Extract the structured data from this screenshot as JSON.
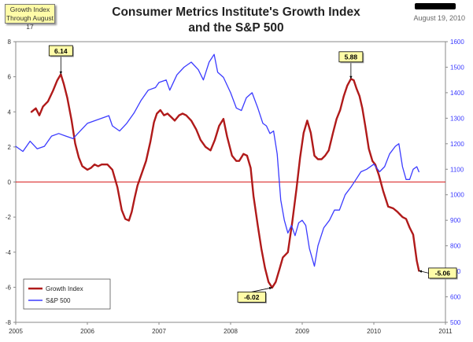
{
  "header": {
    "tag_line1": "Growth Index",
    "tag_line2": "Through August 17",
    "title_line1": "Consumer Metrics Institute's Growth Index",
    "title_line2": "and the S&P 500",
    "date": "August 19, 2010"
  },
  "chart_data": {
    "type": "line",
    "left_axis": {
      "min": -8,
      "max": 8,
      "ticks": [
        -8,
        -6,
        -4,
        -2,
        0,
        2,
        4,
        6,
        8
      ]
    },
    "right_axis": {
      "min": 500,
      "max": 1600,
      "ticks": [
        500,
        600,
        700,
        800,
        900,
        1000,
        1100,
        1200,
        1300,
        1400,
        1500,
        1600
      ]
    },
    "x_axis": {
      "min": 2005,
      "max": 2011,
      "ticks": [
        "2005",
        "2006",
        "2007",
        "2008",
        "2009",
        "2010",
        "2011"
      ]
    },
    "zero_line_color": "#d81e1e",
    "legend": {
      "position": "bottom-left"
    },
    "series": [
      {
        "name": "Growth Index",
        "color": "#b01a1a",
        "axis": "left",
        "x": [
          2005.22,
          2005.28,
          2005.33,
          2005.38,
          2005.45,
          2005.52,
          2005.58,
          2005.63,
          2005.67,
          2005.72,
          2005.78,
          2005.83,
          2005.88,
          2005.93,
          2006.0,
          2006.05,
          2006.1,
          2006.15,
          2006.2,
          2006.28,
          2006.35,
          2006.42,
          2006.48,
          2006.53,
          2006.58,
          2006.62,
          2006.66,
          2006.7,
          2006.76,
          2006.82,
          2006.88,
          2006.93,
          2006.97,
          2007.02,
          2007.07,
          2007.12,
          2007.17,
          2007.22,
          2007.28,
          2007.33,
          2007.38,
          2007.45,
          2007.52,
          2007.58,
          2007.65,
          2007.72,
          2007.78,
          2007.84,
          2007.9,
          2007.95,
          2008.02,
          2008.08,
          2008.12,
          2008.18,
          2008.23,
          2008.28,
          2008.32,
          2008.38,
          2008.43,
          2008.48,
          2008.53,
          2008.58,
          2008.63,
          2008.68,
          2008.73,
          2008.8,
          2008.86,
          2008.92,
          2008.97,
          2009.02,
          2009.07,
          2009.12,
          2009.17,
          2009.22,
          2009.27,
          2009.32,
          2009.37,
          2009.43,
          2009.48,
          2009.53,
          2009.58,
          2009.63,
          2009.68,
          2009.72,
          2009.76,
          2009.8,
          2009.84,
          2009.88,
          2009.93,
          2009.98,
          2010.02,
          2010.07,
          2010.13,
          2010.2,
          2010.27,
          2010.33,
          2010.4,
          2010.45,
          2010.5,
          2010.55,
          2010.6,
          2010.63
        ],
        "values": [
          4.0,
          4.2,
          3.8,
          4.3,
          4.6,
          5.2,
          5.8,
          6.14,
          5.6,
          4.8,
          3.5,
          2.2,
          1.4,
          0.9,
          0.7,
          0.8,
          1.0,
          0.9,
          1.0,
          1.0,
          0.7,
          -0.3,
          -1.6,
          -2.1,
          -2.2,
          -1.7,
          -0.9,
          -0.2,
          0.5,
          1.2,
          2.3,
          3.4,
          3.9,
          4.1,
          3.8,
          3.9,
          3.7,
          3.5,
          3.8,
          3.9,
          3.8,
          3.5,
          3.0,
          2.4,
          2.0,
          1.8,
          2.4,
          3.2,
          3.6,
          2.6,
          1.5,
          1.2,
          1.2,
          1.6,
          1.5,
          0.8,
          -0.8,
          -2.5,
          -3.8,
          -4.9,
          -5.7,
          -6.02,
          -5.7,
          -5.0,
          -4.3,
          -4.0,
          -2.3,
          -0.4,
          1.4,
          2.8,
          3.5,
          2.8,
          1.5,
          1.3,
          1.3,
          1.5,
          1.8,
          2.8,
          3.6,
          4.1,
          4.9,
          5.5,
          5.88,
          5.8,
          5.3,
          4.9,
          4.2,
          3.2,
          1.9,
          1.2,
          1.0,
          0.4,
          -0.5,
          -1.4,
          -1.5,
          -1.7,
          -2.0,
          -2.1,
          -2.6,
          -3.0,
          -4.5,
          -5.06
        ]
      },
      {
        "name": "S&P 500",
        "color": "#3b3bff",
        "axis": "right",
        "x": [
          2005.0,
          2005.1,
          2005.2,
          2005.3,
          2005.4,
          2005.5,
          2005.6,
          2005.7,
          2005.8,
          2005.9,
          2006.0,
          2006.1,
          2006.2,
          2006.3,
          2006.35,
          2006.45,
          2006.55,
          2006.65,
          2006.75,
          2006.85,
          2006.95,
          2007.0,
          2007.1,
          2007.15,
          2007.25,
          2007.35,
          2007.45,
          2007.55,
          2007.62,
          2007.7,
          2007.77,
          2007.82,
          2007.9,
          2008.0,
          2008.08,
          2008.15,
          2008.22,
          2008.3,
          2008.38,
          2008.45,
          2008.5,
          2008.55,
          2008.6,
          2008.65,
          2008.7,
          2008.75,
          2008.8,
          2008.85,
          2008.9,
          2008.95,
          2009.0,
          2009.05,
          2009.1,
          2009.17,
          2009.22,
          2009.3,
          2009.38,
          2009.45,
          2009.52,
          2009.6,
          2009.68,
          2009.75,
          2009.82,
          2009.9,
          2010.0,
          2010.08,
          2010.15,
          2010.22,
          2010.3,
          2010.35,
          2010.4,
          2010.45,
          2010.5,
          2010.55,
          2010.6,
          2010.63
        ],
        "values": [
          1190,
          1170,
          1210,
          1180,
          1190,
          1230,
          1240,
          1230,
          1220,
          1250,
          1280,
          1290,
          1300,
          1310,
          1270,
          1250,
          1280,
          1320,
          1370,
          1410,
          1420,
          1440,
          1450,
          1410,
          1470,
          1500,
          1520,
          1490,
          1450,
          1520,
          1550,
          1480,
          1460,
          1400,
          1340,
          1330,
          1380,
          1400,
          1340,
          1280,
          1270,
          1240,
          1250,
          1160,
          980,
          900,
          850,
          880,
          840,
          890,
          900,
          880,
          790,
          720,
          800,
          870,
          900,
          940,
          940,
          1000,
          1030,
          1060,
          1090,
          1100,
          1120,
          1090,
          1110,
          1160,
          1190,
          1200,
          1110,
          1060,
          1060,
          1100,
          1110,
          1090
        ]
      }
    ],
    "callouts": [
      {
        "label": "6.14",
        "x": 2005.63,
        "y": 6.14
      },
      {
        "label": "5.88",
        "x": 2009.68,
        "y": 5.88
      },
      {
        "label": "-6.02",
        "x": 2008.58,
        "y": -6.02
      },
      {
        "label": "-5.06",
        "x": 2010.63,
        "y": -5.06
      }
    ]
  }
}
